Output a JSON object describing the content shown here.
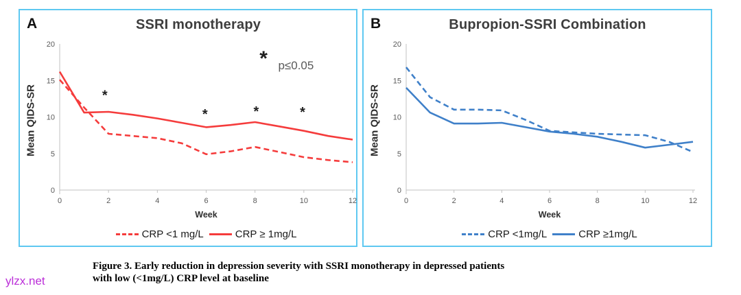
{
  "watermark": "ylzx.net",
  "caption": {
    "line1": "Figure 3. Early reduction in depression severity with SSRI monotherapy in depressed patients",
    "line2": "with low (<1mg/L) CRP level at baseline"
  },
  "colors": {
    "border": "#5ec8f1",
    "red": "#f53c3c",
    "blue": "#3f80c9",
    "axis": "#c2c2c2",
    "tick_text": "#595959",
    "annotation_text": "#595959",
    "asterisk": "#1f1f1f",
    "watermark": "#bb2ed8"
  },
  "chart_data": [
    {
      "type": "line",
      "panel_label": "A",
      "title": "SSRI monotherapy",
      "xlabel": "Week",
      "ylabel": "Mean QIDS-SR",
      "ylim": [
        0,
        20
      ],
      "yticks": [
        0,
        5,
        10,
        15,
        20
      ],
      "xticks": [
        0,
        2,
        4,
        6,
        8,
        10,
        12
      ],
      "x": [
        0,
        1,
        2,
        3,
        4,
        5,
        6,
        7,
        8,
        9,
        10,
        11,
        12
      ],
      "grid": false,
      "legend_position": "bottom",
      "series": [
        {
          "name": "CRP <1 mg/L",
          "style": "dashed",
          "color": "#f53c3c",
          "values": [
            15.1,
            11.3,
            7.7,
            7.4,
            7.1,
            6.4,
            4.9,
            5.3,
            5.9,
            5.2,
            4.5,
            4.1,
            3.8
          ]
        },
        {
          "name": "CRP ≥ 1mg/L",
          "style": "solid",
          "color": "#f53c3c",
          "values": [
            16.2,
            10.6,
            10.7,
            10.3,
            9.8,
            9.2,
            8.6,
            8.9,
            9.3,
            8.7,
            8.1,
            7.4,
            6.9
          ]
        }
      ],
      "annotations": {
        "asterisks": [
          {
            "week": 1.85,
            "value": 13.2
          },
          {
            "week": 5.95,
            "value": 10.6
          },
          {
            "week": 8.05,
            "value": 11.0
          },
          {
            "week": 9.95,
            "value": 10.9
          }
        ],
        "key_asterisk": {
          "week": 8.35,
          "value": 18.3
        },
        "sig_label": "p≤0.05",
        "sig_label_pos": {
          "week": 8.95,
          "value": 17.1
        }
      }
    },
    {
      "type": "line",
      "panel_label": "B",
      "title": "Bupropion-SSRI Combination",
      "xlabel": "Week",
      "ylabel": "Mean QIDS-SR",
      "ylim": [
        0,
        20
      ],
      "yticks": [
        0,
        5,
        10,
        15,
        20
      ],
      "xticks": [
        0,
        2,
        4,
        6,
        8,
        10,
        12
      ],
      "x": [
        0,
        1,
        2,
        3,
        4,
        5,
        6,
        7,
        8,
        9,
        10,
        11,
        12
      ],
      "grid": false,
      "legend_position": "bottom",
      "series": [
        {
          "name": "CRP <1mg/L",
          "style": "dashed",
          "color": "#3f80c9",
          "values": [
            16.8,
            12.7,
            11.0,
            11.0,
            10.9,
            9.6,
            8.1,
            7.9,
            7.7,
            7.6,
            7.5,
            6.6,
            5.2
          ]
        },
        {
          "name": "CRP ≥1mg/L",
          "style": "solid",
          "color": "#3f80c9",
          "values": [
            14.0,
            10.6,
            9.1,
            9.1,
            9.2,
            8.6,
            8.0,
            7.7,
            7.3,
            6.6,
            5.8,
            6.2,
            6.6
          ]
        }
      ],
      "annotations": null
    }
  ]
}
